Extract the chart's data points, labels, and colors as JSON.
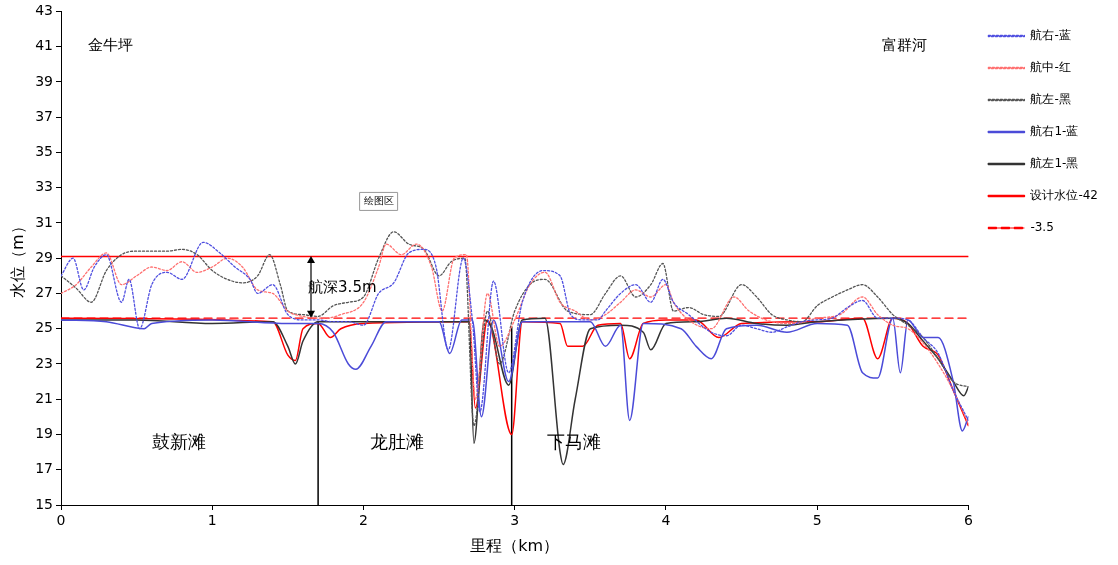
{
  "chart_data": {
    "type": "line",
    "xlabel": "里程（km）",
    "ylabel": "水位（m）",
    "xlim": [
      0,
      6
    ],
    "xticks": [
      0,
      1,
      2,
      3,
      4,
      5,
      6
    ],
    "ylim": [
      15,
      43
    ],
    "yticks": [
      15,
      17,
      19,
      21,
      23,
      25,
      27,
      29,
      31,
      33,
      35,
      37,
      39,
      41,
      43
    ],
    "grid": false,
    "legend": "top right",
    "marker": "none",
    "series": [
      {
        "name": "航右-蓝",
        "color": "#4f4fe0",
        "line_style": "dotted",
        "x": [
          0,
          0.08,
          0.15,
          0.22,
          0.3,
          0.4,
          0.45,
          0.52,
          0.6,
          0.7,
          0.8,
          0.94,
          1.05,
          1.15,
          1.25,
          1.3,
          1.4,
          1.5,
          1.6,
          1.7,
          1.8,
          1.9,
          2.0,
          2.1,
          2.2,
          2.3,
          2.4,
          2.48,
          2.56,
          2.66,
          2.72,
          2.77,
          2.86,
          2.96,
          3.05,
          3.19,
          3.3,
          3.37,
          3.45,
          3.55,
          3.6,
          3.7,
          3.8,
          3.9,
          3.98,
          4.05,
          4.15,
          4.3,
          4.4,
          4.5,
          4.6,
          4.7,
          4.8,
          4.9,
          5.0,
          5.1,
          5.2,
          5.3,
          5.4,
          5.5,
          5.6,
          5.7,
          5.8,
          5.9,
          6.0
        ],
        "values": [
          28,
          29,
          27.2,
          28.5,
          29.2,
          26.5,
          27.8,
          25,
          27.5,
          28.2,
          27.8,
          29.9,
          29.3,
          28.5,
          27.8,
          27,
          27.5,
          25.8,
          25.5,
          25.5,
          25.4,
          25.4,
          25.2,
          27,
          27.6,
          29.3,
          29.5,
          28.5,
          23.8,
          29,
          25.5,
          20.3,
          27.7,
          22.5,
          26.5,
          28.3,
          28,
          25.8,
          25.5,
          25.5,
          26,
          27,
          27.5,
          26.5,
          27.8,
          26.5,
          25.8,
          24.8,
          24.6,
          25.2,
          25,
          24.8,
          25.1,
          25.4,
          25.5,
          25.6,
          26.2,
          26.6,
          25.6,
          25.6,
          25.5,
          24.5,
          23.6,
          21.5,
          19.8
        ]
      },
      {
        "name": "航中-红",
        "color": "#ff7070",
        "line_style": "dotted",
        "x": [
          0,
          0.1,
          0.2,
          0.3,
          0.4,
          0.5,
          0.6,
          0.7,
          0.8,
          0.9,
          1.0,
          1.1,
          1.2,
          1.3,
          1.4,
          1.5,
          1.6,
          1.75,
          1.85,
          2.0,
          2.1,
          2.15,
          2.25,
          2.35,
          2.45,
          2.52,
          2.6,
          2.68,
          2.74,
          2.82,
          2.9,
          3.0,
          3.1,
          3.2,
          3.3,
          3.4,
          3.5,
          3.6,
          3.7,
          3.8,
          3.9,
          4.0,
          4.05,
          4.15,
          4.3,
          4.45,
          4.55,
          4.7,
          4.85,
          5.0,
          5.15,
          5.3,
          5.4,
          5.5,
          5.6,
          5.7,
          5.8,
          5.9,
          6.0
        ],
        "values": [
          27,
          27.5,
          28.5,
          29.3,
          27.5,
          28,
          28.5,
          28.3,
          28.8,
          28.2,
          28.5,
          29,
          28.5,
          27.2,
          27,
          26,
          25.7,
          25.6,
          25.8,
          26.5,
          28.5,
          29.8,
          29.2,
          29.8,
          28.5,
          26,
          29,
          29.2,
          21,
          27,
          24,
          25.5,
          27.5,
          28.2,
          26.5,
          26,
          25.5,
          25.8,
          26.5,
          27.2,
          26.8,
          27.5,
          26.5,
          25.5,
          25,
          26.8,
          26,
          25.4,
          25.3,
          25.6,
          25.8,
          26.8,
          25.8,
          25.2,
          25,
          24.2,
          23,
          21.5,
          19.6
        ]
      },
      {
        "name": "航左-黑",
        "color": "#555555",
        "line_style": "dotted",
        "x": [
          0,
          0.1,
          0.2,
          0.3,
          0.4,
          0.5,
          0.7,
          0.8,
          0.9,
          1.0,
          1.1,
          1.2,
          1.3,
          1.38,
          1.45,
          1.5,
          1.6,
          1.7,
          1.8,
          1.9,
          2.0,
          2.1,
          2.2,
          2.3,
          2.4,
          2.5,
          2.58,
          2.67,
          2.73,
          2.82,
          2.9,
          3.0,
          3.1,
          3.2,
          3.35,
          3.5,
          3.6,
          3.7,
          3.8,
          3.9,
          3.98,
          4.05,
          4.15,
          4.25,
          4.35,
          4.5,
          4.6,
          4.7,
          4.8,
          4.9,
          5.0,
          5.1,
          5.2,
          5.3,
          5.4,
          5.5,
          5.6,
          5.7,
          5.8,
          5.9,
          6.0
        ],
        "values": [
          28,
          27.3,
          26.5,
          28.3,
          29.2,
          29.4,
          29.4,
          29.5,
          29.2,
          28.3,
          27.8,
          27.6,
          28,
          29.2,
          27.5,
          26,
          25.8,
          25.7,
          26.3,
          26.5,
          26.8,
          29,
          30.5,
          29.8,
          29.5,
          28,
          28.8,
          29,
          19.5,
          26,
          23,
          26,
          27.5,
          27.8,
          26,
          25.8,
          27,
          28,
          26.8,
          27.5,
          28.7,
          26,
          26.2,
          25.8,
          25.7,
          27.5,
          26.8,
          25.8,
          25.5,
          25.4,
          26.3,
          26.8,
          27.2,
          27.5,
          26.8,
          25.8,
          25.2,
          24.5,
          23.3,
          22,
          21.7
        ]
      },
      {
        "name": "航右1-蓝",
        "color": "#4b4bd8",
        "line_style": "solid",
        "x": [
          0,
          0.3,
          0.55,
          0.6,
          1.0,
          1.5,
          1.7,
          1.8,
          1.9,
          1.95,
          2.05,
          2.15,
          2.5,
          2.57,
          2.65,
          2.72,
          2.78,
          2.86,
          2.96,
          3.05,
          3.5,
          3.6,
          3.7,
          3.76,
          3.85,
          4.1,
          4.2,
          4.3,
          4.4,
          4.6,
          4.8,
          5.0,
          5.2,
          5.3,
          5.4,
          5.5,
          5.55,
          5.6,
          5.7,
          5.8,
          5.9,
          5.96,
          6.0
        ],
        "values": [
          25.5,
          25.4,
          25,
          25.3,
          25.5,
          25.3,
          25.3,
          24.8,
          23,
          22.7,
          24,
          25.4,
          25.4,
          23.6,
          25.5,
          25.5,
          20,
          25.5,
          22,
          25.4,
          25.4,
          24,
          25.2,
          19.8,
          25.3,
          25,
          24,
          23.3,
          25,
          25.2,
          24.8,
          25.3,
          25.2,
          22.5,
          22.2,
          25.6,
          22.5,
          25.5,
          24.5,
          24.5,
          22,
          19.2,
          20
        ]
      },
      {
        "name": "航左1-黑",
        "color": "#333333",
        "line_style": "solid",
        "x": [
          0,
          0.5,
          1.0,
          1.4,
          1.5,
          1.55,
          1.6,
          1.7,
          1.8,
          2.7,
          2.73,
          2.8,
          2.85,
          2.96,
          3.05,
          3.2,
          3.3,
          3.32,
          3.4,
          3.5,
          3.7,
          3.85,
          3.9,
          4.0,
          4.2,
          4.4,
          4.6,
          4.8,
          5.0,
          5.5,
          5.6,
          5.7,
          5.8,
          5.9,
          5.97,
          6.0
        ],
        "values": [
          25.5,
          25.5,
          25.3,
          25.4,
          24,
          23,
          24.3,
          25.4,
          25.4,
          25.4,
          18.5,
          25.5,
          25,
          21.8,
          25.5,
          25.6,
          18,
          17.3,
          21,
          25,
          25.2,
          24.8,
          23.8,
          25.3,
          25.4,
          25.6,
          25.3,
          25.2,
          25.4,
          25.6,
          25.3,
          24.3,
          23.3,
          22,
          21.2,
          21.7
        ]
      },
      {
        "color": "#ff0000",
        "line_style": "solid",
        "x": [
          0,
          1.4,
          1.5,
          1.55,
          1.6,
          1.7,
          1.78,
          1.85,
          2.0,
          2.7,
          2.74,
          2.82,
          2.98,
          3.05,
          3.3,
          3.35,
          3.45,
          3.55,
          3.7,
          3.76,
          3.85,
          4.0,
          4.2,
          4.35,
          4.5,
          5.0,
          5.3,
          5.4,
          5.5,
          5.6,
          5.7,
          5.8,
          5.9,
          6.0
        ],
        "values": [
          25.6,
          25.4,
          23.5,
          23.2,
          25,
          25.3,
          24.5,
          25,
          25.3,
          25.4,
          20.5,
          25.5,
          19,
          25.4,
          25.3,
          24,
          24,
          25.2,
          25.3,
          23.3,
          25.3,
          25.5,
          25.5,
          24.5,
          25.3,
          25.4,
          25.6,
          23.3,
          25.6,
          25.3,
          24,
          23.5,
          21.5,
          19.5
        ]
      },
      {
        "name": "设计水位-42",
        "color": "#ff0000",
        "line_style": "solid",
        "x": [
          0,
          6
        ],
        "values": [
          29.1,
          29.1
        ]
      },
      {
        "name": "-3.5",
        "color": "#ff0000",
        "line_style": "dashed",
        "x": [
          0,
          6
        ],
        "values": [
          25.6,
          25.6
        ]
      },
      {
        "color": "#000000",
        "line_style": "solid",
        "x": [
          1.7,
          1.7
        ],
        "values": [
          15,
          25.4
        ]
      },
      {
        "color": "#000000",
        "line_style": "solid",
        "x": [
          2.98,
          2.98
        ],
        "values": [
          15,
          25.1
        ]
      }
    ],
    "annotations": [
      "金牛坪",
      "富群河",
      "绘图区",
      "航深3.5m",
      "鼓新滩",
      "龙肚滩",
      "下马滩"
    ]
  }
}
